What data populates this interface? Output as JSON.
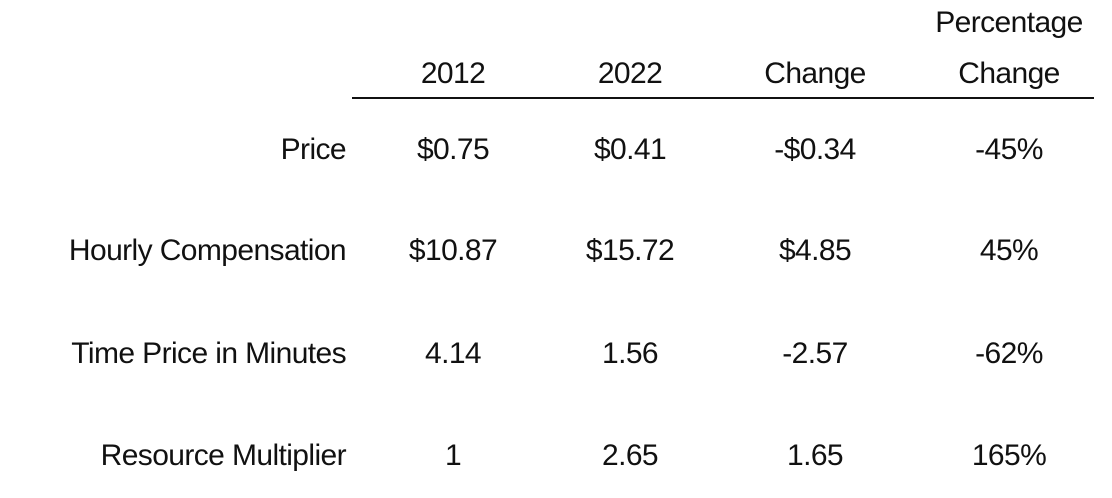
{
  "table": {
    "columns": [
      {
        "line1": "",
        "line2": "2012"
      },
      {
        "line1": "",
        "line2": "2022"
      },
      {
        "line1": "",
        "line2": "Change"
      },
      {
        "line1": "Percentage",
        "line2": "Change"
      }
    ],
    "rows": [
      {
        "label": "Price",
        "values": [
          "$0.75",
          "$0.41",
          "-$0.34",
          "-45%"
        ]
      },
      {
        "label": "Hourly Compensation",
        "values": [
          "$10.87",
          "$15.72",
          "$4.85",
          "45%"
        ]
      },
      {
        "label": "Time Price in Minutes",
        "values": [
          "4.14",
          "1.56",
          "-2.57",
          "-62%"
        ]
      },
      {
        "label": "Resource Multiplier",
        "values": [
          "1",
          "2.65",
          "1.65",
          "165%"
        ]
      }
    ]
  }
}
